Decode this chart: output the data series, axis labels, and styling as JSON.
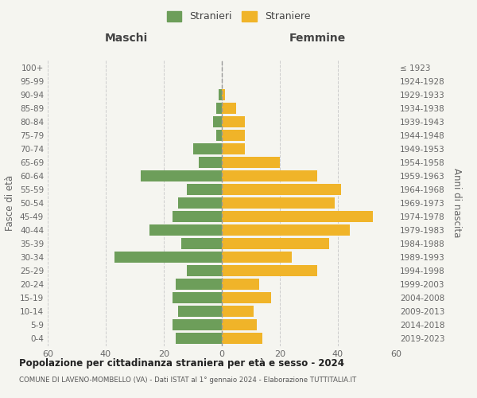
{
  "age_groups": [
    "100+",
    "95-99",
    "90-94",
    "85-89",
    "80-84",
    "75-79",
    "70-74",
    "65-69",
    "60-64",
    "55-59",
    "50-54",
    "45-49",
    "40-44",
    "35-39",
    "30-34",
    "25-29",
    "20-24",
    "15-19",
    "10-14",
    "5-9",
    "0-4"
  ],
  "birth_years": [
    "≤ 1923",
    "1924-1928",
    "1929-1933",
    "1934-1938",
    "1939-1943",
    "1944-1948",
    "1949-1953",
    "1954-1958",
    "1959-1963",
    "1964-1968",
    "1969-1973",
    "1974-1978",
    "1979-1983",
    "1984-1988",
    "1989-1993",
    "1994-1998",
    "1999-2003",
    "2004-2008",
    "2009-2013",
    "2014-2018",
    "2019-2023"
  ],
  "males": [
    0,
    0,
    1,
    2,
    3,
    2,
    10,
    8,
    28,
    12,
    15,
    17,
    25,
    14,
    37,
    12,
    16,
    17,
    15,
    17,
    16
  ],
  "females": [
    0,
    0,
    1,
    5,
    8,
    8,
    8,
    20,
    33,
    41,
    39,
    52,
    44,
    37,
    24,
    33,
    13,
    17,
    11,
    12,
    14
  ],
  "male_color": "#6d9e5a",
  "female_color": "#f0b429",
  "background_color": "#f5f5f0",
  "grid_color": "#cccccc",
  "title": "Popolazione per cittadinanza straniera per età e sesso - 2024",
  "subtitle": "COMUNE DI LAVENO-MOMBELLO (VA) - Dati ISTAT al 1° gennaio 2024 - Elaborazione TUTTITALIA.IT",
  "xlabel_left": "Maschi",
  "xlabel_right": "Femmine",
  "ylabel_left": "Fasce di età",
  "ylabel_right": "Anni di nascita",
  "legend_male": "Stranieri",
  "legend_female": "Straniere",
  "xlim": 60,
  "bar_height": 0.8
}
